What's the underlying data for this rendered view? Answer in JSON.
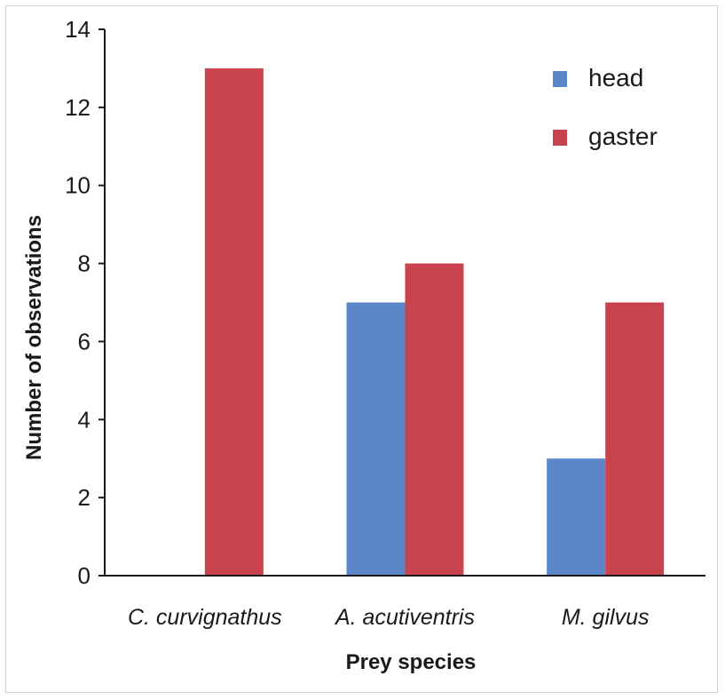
{
  "chart_data": {
    "type": "bar",
    "categories": [
      "C. curvignathus",
      "A. acutiventris",
      "M. gilvus"
    ],
    "series": [
      {
        "name": "head",
        "values": [
          0,
          7,
          3
        ],
        "color": "#5b87c9"
      },
      {
        "name": "gaster",
        "values": [
          13,
          8,
          7
        ],
        "color": "#c9434f"
      }
    ],
    "title": "",
    "xlabel": "Prey species",
    "ylabel": "Number of observations",
    "ylim": [
      0,
      14
    ],
    "yticks": [
      0,
      2,
      4,
      6,
      8,
      10,
      12,
      14
    ],
    "grid": false,
    "legend_position": "top-right"
  }
}
